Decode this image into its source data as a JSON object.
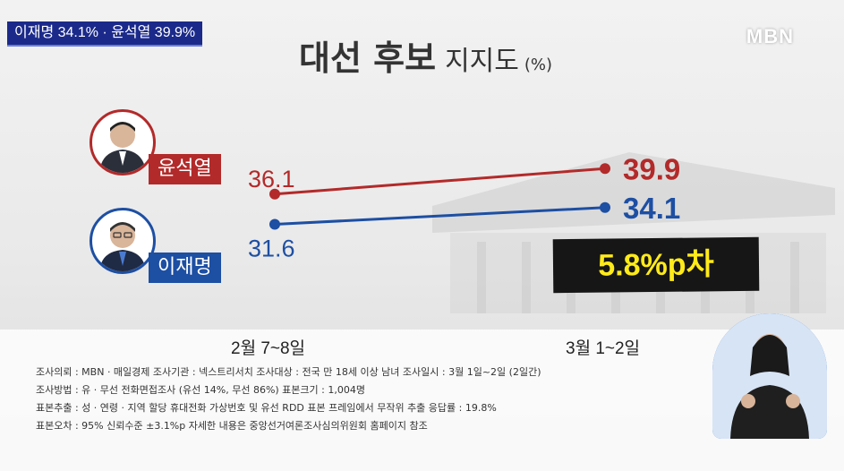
{
  "ticker": {
    "text": "이재명 34.1% · 윤석열 39.9%"
  },
  "logo": "MBN",
  "title": {
    "main": "대선 후보",
    "sub": "지지도",
    "unit": "(%)"
  },
  "candidates": [
    {
      "name": "윤석열",
      "color": "#b32a2a"
    },
    {
      "name": "이재명",
      "color": "#1d4fa3"
    }
  ],
  "chart_data": {
    "type": "line",
    "categories": [
      "2월 7~8일",
      "3월 1~2일"
    ],
    "series": [
      {
        "name": "윤석열",
        "values": [
          36.1,
          39.9
        ],
        "color": "#b32a2a"
      },
      {
        "name": "이재명",
        "values": [
          31.6,
          34.1
        ],
        "color": "#1d4fa3"
      }
    ],
    "labels": [
      [
        "36.1",
        "39.9"
      ],
      [
        "31.6",
        "34.1"
      ]
    ],
    "annotation": "5.8%p차",
    "ylim": [
      25,
      45
    ]
  },
  "notes": [
    "조사의뢰 : MBN · 매일경제      조사기관 : 넥스트리서치      조사대상 : 전국 만 18세 이상 남녀      조사일시 : 3월 1일~2일 (2일간)",
    "조사방법 : 유 · 무선 전화면접조사 (유선 14%, 무선 86%)      표본크기 : 1,004명",
    "표본추출 : 성 · 연령 · 지역 할당 휴대전화 가상번호 및 유선 RDD 표본 프레임에서 무작위 추출      응답률 : 19.8%",
    "표본오차 : 95% 신뢰수준 ±3.1%p      자세한 내용은 중앙선거여론조사심의위원회 홈페이지 참조"
  ]
}
